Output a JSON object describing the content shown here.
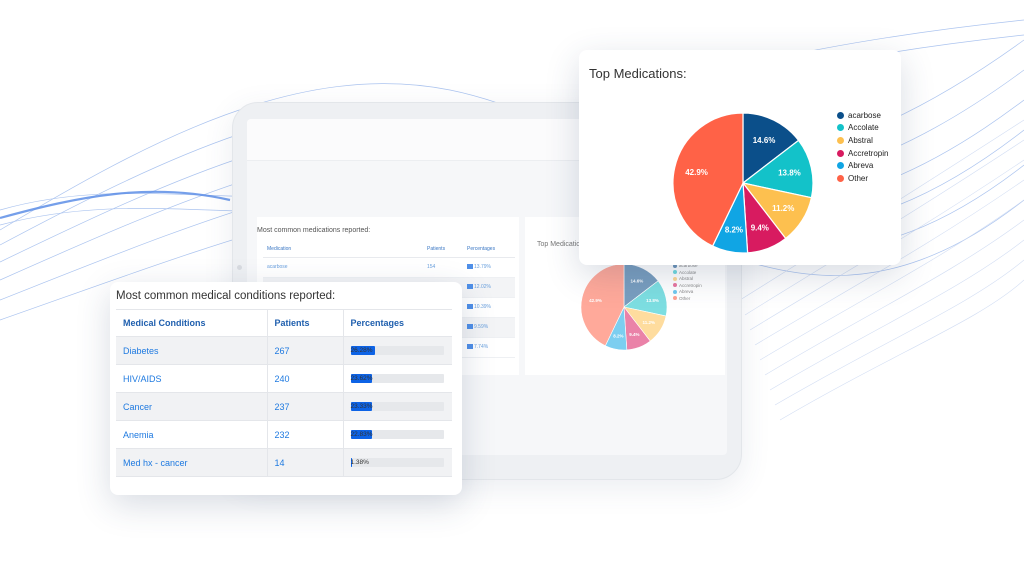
{
  "colors": {
    "acarbose": "#0b4f8a",
    "accolate": "#13c2c9",
    "abstral": "#fdc04f",
    "accretropin": "#d81b60",
    "abreva": "#10a5e4",
    "other": "#ff6247",
    "bar_fill": "#0d63e6",
    "link_blue": "#1f7ae0"
  },
  "tablet": {
    "medications_title": "Most common medications reported:",
    "med_headers": [
      "Medication",
      "Patients",
      "Percentages"
    ],
    "med_rows": [
      {
        "name": "acarbose",
        "patients": "154",
        "pct": "13.79%"
      },
      {
        "name": "",
        "patients": "",
        "pct": "12.02%"
      },
      {
        "name": "",
        "patients": "",
        "pct": "10.39%"
      },
      {
        "name": "",
        "patients": "",
        "pct": "9.59%"
      },
      {
        "name": "",
        "patients": "",
        "pct": "7.74%"
      }
    ],
    "chart_title": "Top Medications:",
    "legend": [
      "acarbose",
      "Accolate",
      "Abstral",
      "Accretropin",
      "Abreva",
      "Other"
    ],
    "slice_labels": [
      "14.6%",
      "13.8%",
      "11.2%",
      "9.4%",
      "8.2%",
      "42.9%"
    ]
  },
  "conditions": {
    "title": "Most common medical conditions reported:",
    "headers": {
      "condition": "Medical Conditions",
      "patients": "Patients",
      "percentages": "Percentages"
    },
    "rows": [
      {
        "condition": "Diabetes",
        "patients": "267",
        "percentage": "26.28%",
        "fill": 0.2628
      },
      {
        "condition": "HIV/AIDS",
        "patients": "240",
        "percentage": "23.62%",
        "fill": 0.2362
      },
      {
        "condition": "Cancer",
        "patients": "237",
        "percentage": "23.33%",
        "fill": 0.2333
      },
      {
        "condition": "Anemia",
        "patients": "232",
        "percentage": "22.83%",
        "fill": 0.2283
      },
      {
        "condition": "Med hx - cancer",
        "patients": "14",
        "percentage": "1.38%",
        "fill": 0.0138
      }
    ]
  },
  "medications_card": {
    "title": "Top Medications:"
  },
  "chart_data": {
    "type": "pie",
    "title": "Top Medications:",
    "legend_position": "right",
    "categories": [
      "acarbose",
      "Accolate",
      "Abstral",
      "Accretropin",
      "Abreva",
      "Other"
    ],
    "values": [
      14.6,
      13.8,
      11.2,
      9.4,
      8.2,
      42.9
    ],
    "labels": [
      "14.6%",
      "13.8%",
      "11.2%",
      "9.4%",
      "8.2%",
      "42.9%"
    ],
    "colors": [
      "#0b4f8a",
      "#13c2c9",
      "#fdc04f",
      "#d81b60",
      "#10a5e4",
      "#ff6247"
    ]
  }
}
